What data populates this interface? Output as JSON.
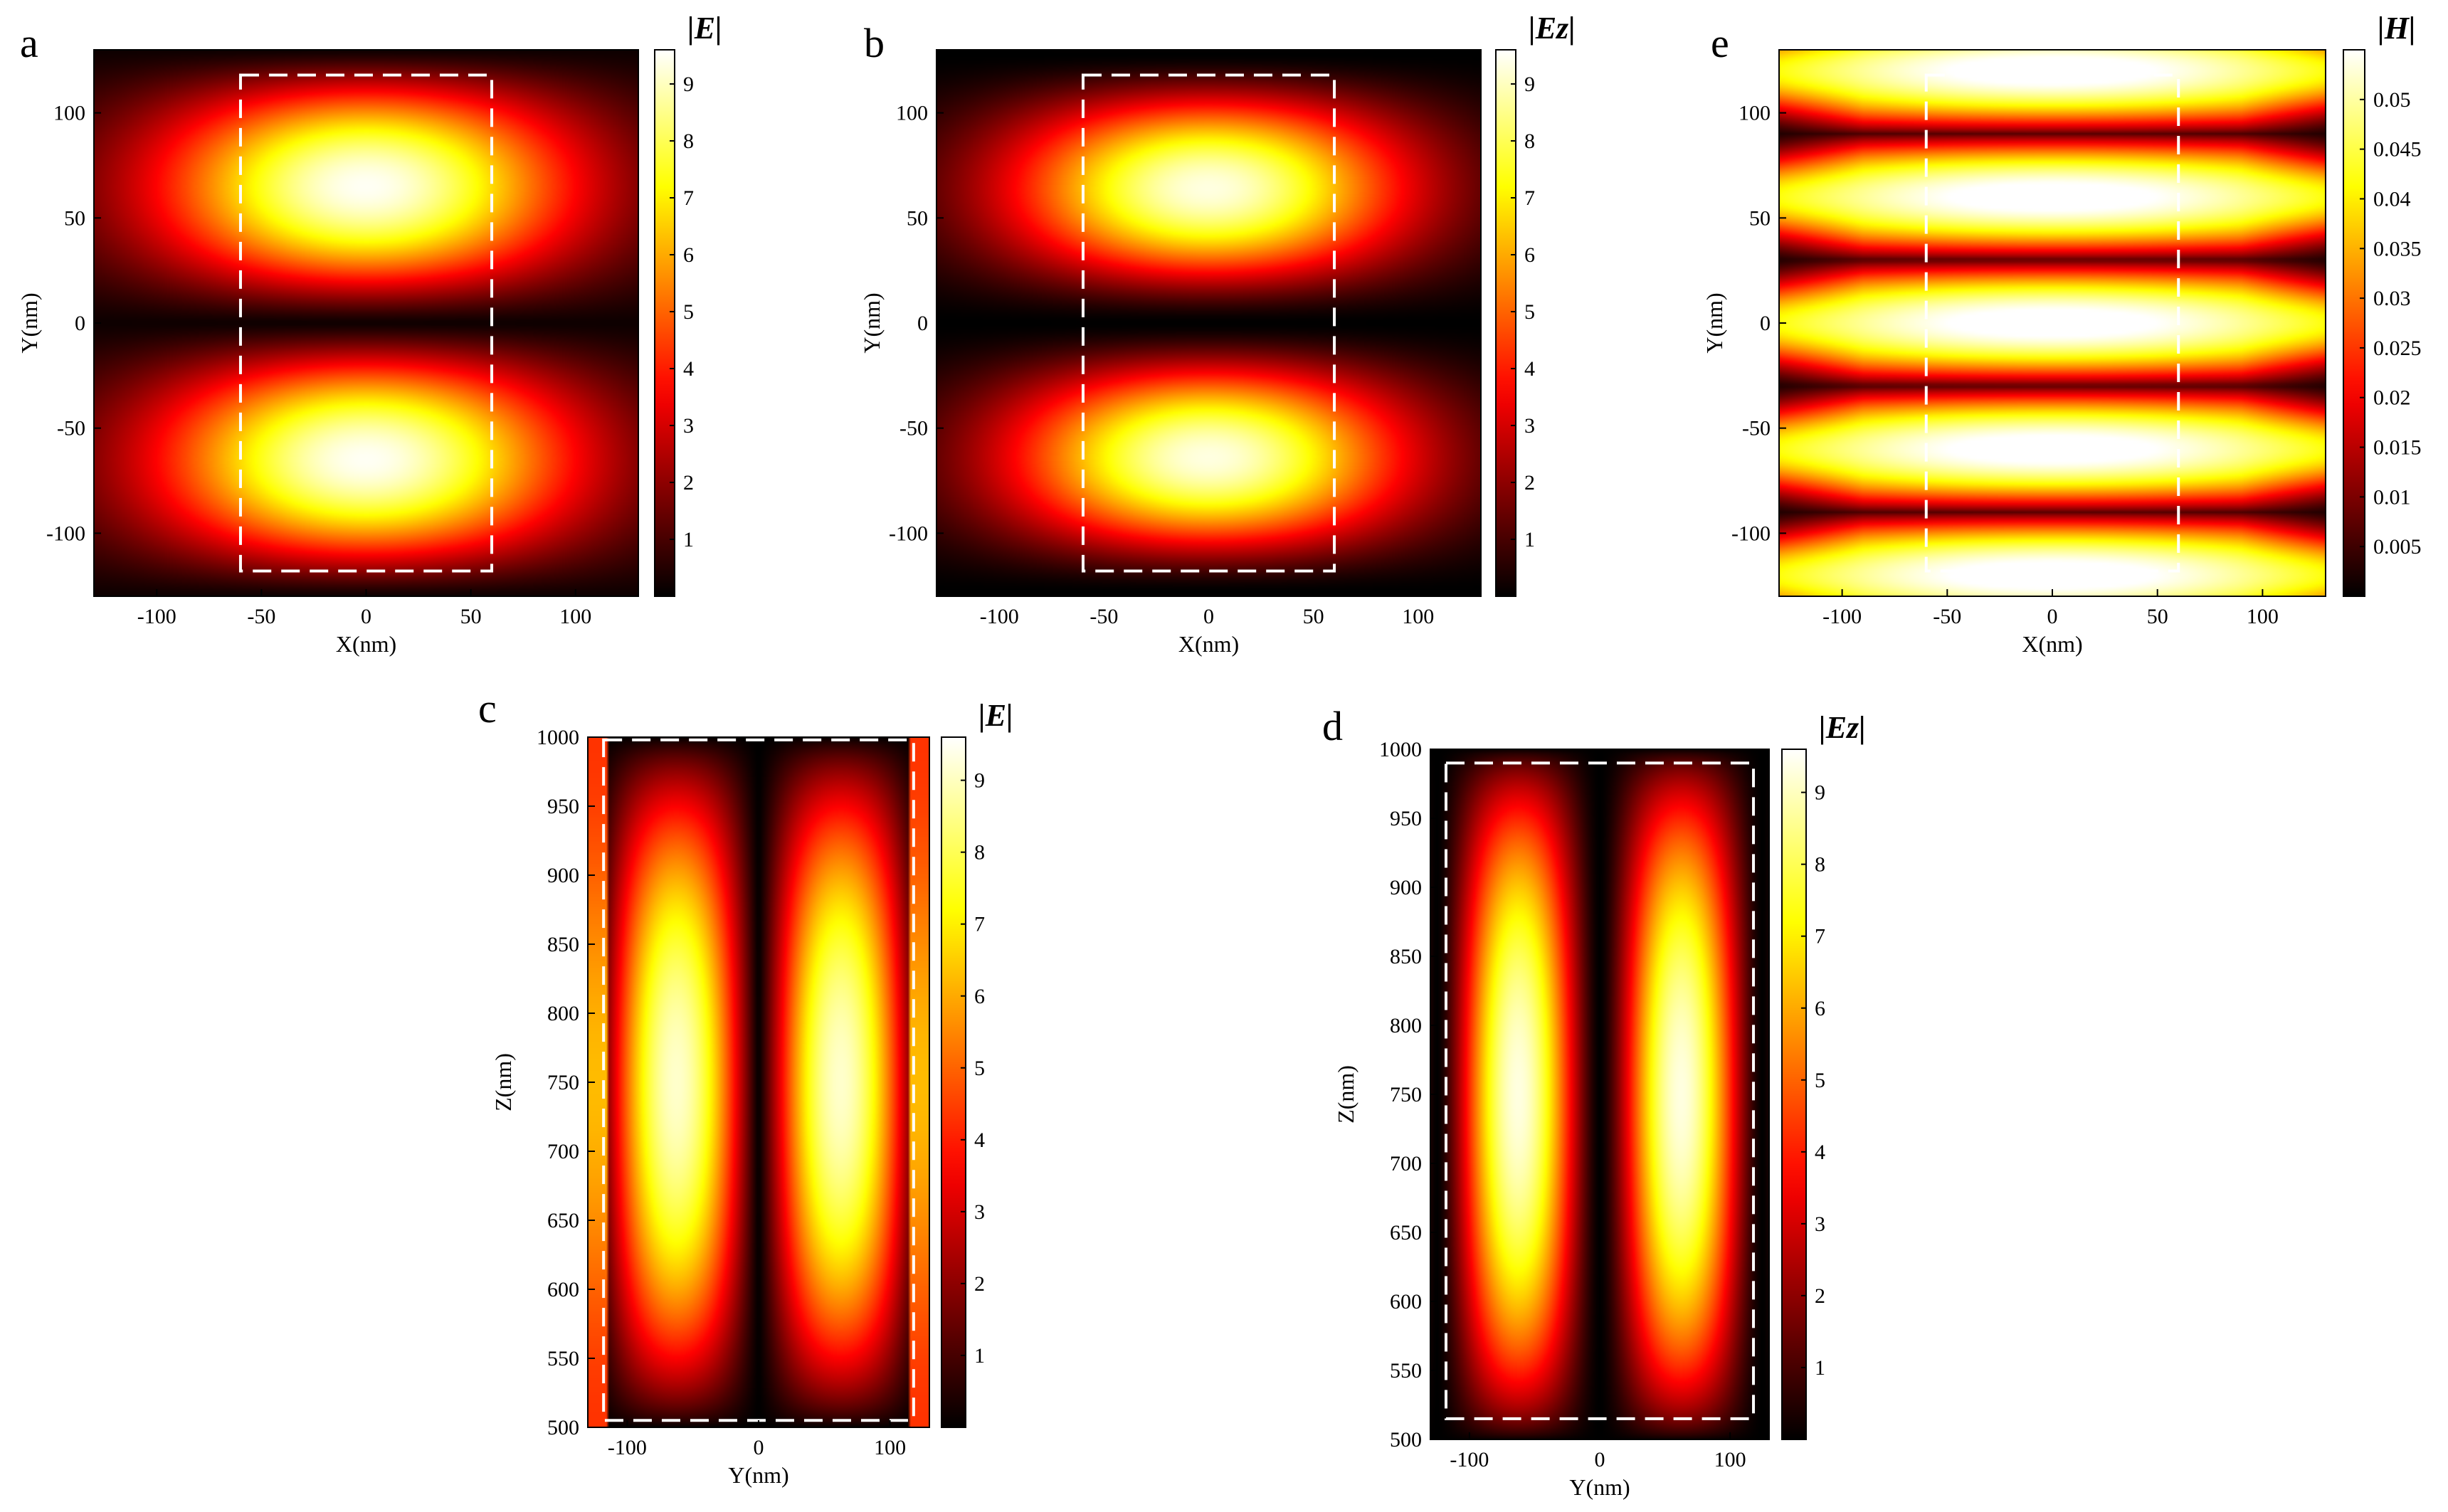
{
  "chart_data": [
    {
      "letter": "a",
      "type": "heatmap",
      "colormap": "hot",
      "xlabel": "X(nm)",
      "ylabel": "Y(nm)",
      "xlim": [
        -130,
        130
      ],
      "ylim": [
        -130,
        130
      ],
      "xticks": [
        -100,
        -50,
        0,
        50,
        100
      ],
      "yticks": [
        -100,
        -50,
        0,
        50,
        100
      ],
      "colorbar": {
        "title": "|E|",
        "range": [
          0,
          9.6
        ],
        "ticks": [
          1,
          2,
          3,
          4,
          5,
          6,
          7,
          8,
          9
        ]
      },
      "dashed_box": {
        "x": [
          -60,
          60
        ],
        "y": [
          -118,
          118
        ]
      },
      "field": "E_xy"
    },
    {
      "letter": "b",
      "type": "heatmap",
      "colormap": "hot",
      "xlabel": "X(nm)",
      "ylabel": "Y(nm)",
      "xlim": [
        -130,
        130
      ],
      "ylim": [
        -130,
        130
      ],
      "xticks": [
        -100,
        -50,
        0,
        50,
        100
      ],
      "yticks": [
        -100,
        -50,
        0,
        50,
        100
      ],
      "colorbar": {
        "title": "|Ez|",
        "range": [
          0,
          9.6
        ],
        "ticks": [
          1,
          2,
          3,
          4,
          5,
          6,
          7,
          8,
          9
        ]
      },
      "dashed_box": {
        "x": [
          -60,
          60
        ],
        "y": [
          -118,
          118
        ]
      },
      "field": "Ez_xy"
    },
    {
      "letter": "e",
      "type": "heatmap",
      "colormap": "hot",
      "xlabel": "X(nm)",
      "ylabel": "Y(nm)",
      "xlim": [
        -130,
        130
      ],
      "ylim": [
        -130,
        130
      ],
      "xticks": [
        -100,
        -50,
        0,
        50,
        100
      ],
      "yticks": [
        -100,
        -50,
        0,
        50,
        100
      ],
      "colorbar": {
        "title": "|H|",
        "range": [
          0,
          0.055
        ],
        "ticks": [
          0.005,
          0.01,
          0.015,
          0.02,
          0.025,
          0.03,
          0.035,
          0.04,
          0.045,
          0.05
        ]
      },
      "dashed_box": {
        "x": [
          -60,
          60
        ],
        "y": [
          -118,
          118
        ]
      },
      "field": "H_xy"
    },
    {
      "letter": "c",
      "type": "heatmap",
      "colormap": "hot",
      "xlabel": "Y(nm)",
      "ylabel": "Z(nm)",
      "xlim": [
        -130,
        130
      ],
      "ylim": [
        500,
        1000
      ],
      "xticks": [
        -100,
        0,
        100
      ],
      "yticks": [
        500,
        550,
        600,
        650,
        700,
        750,
        800,
        850,
        900,
        950,
        1000
      ],
      "colorbar": {
        "title": "|E|",
        "range": [
          0,
          9.6
        ],
        "ticks": [
          1,
          2,
          3,
          4,
          5,
          6,
          7,
          8,
          9
        ]
      },
      "dashed_box": {
        "x": [
          -118,
          118
        ],
        "y": [
          505,
          998
        ]
      },
      "field": "E_yz"
    },
    {
      "letter": "d",
      "type": "heatmap",
      "colormap": "hot",
      "xlabel": "Y(nm)",
      "ylabel": "Z(nm)",
      "xlim": [
        -130,
        130
      ],
      "ylim": [
        500,
        1000
      ],
      "xticks": [
        -100,
        0,
        100
      ],
      "yticks": [
        500,
        550,
        600,
        650,
        700,
        750,
        800,
        850,
        900,
        950,
        1000
      ],
      "colorbar": {
        "title": "|Ez|",
        "range": [
          0,
          9.6
        ],
        "ticks": [
          1,
          2,
          3,
          4,
          5,
          6,
          7,
          8,
          9
        ]
      },
      "dashed_box": {
        "x": [
          -118,
          118
        ],
        "y": [
          515,
          990
        ]
      },
      "field": "Ez_yz"
    }
  ]
}
